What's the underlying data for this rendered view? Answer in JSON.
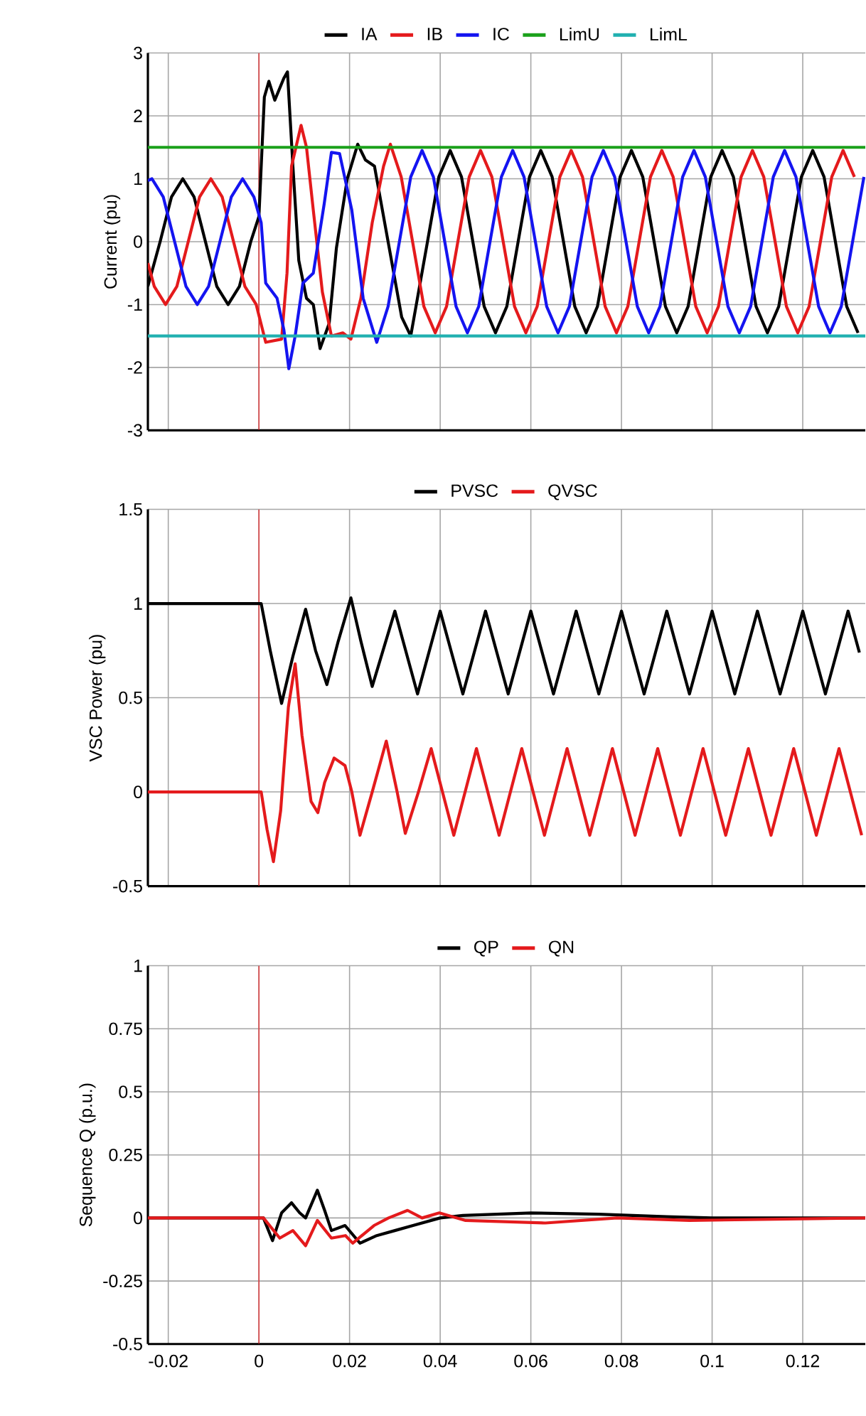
{
  "chart_data": [
    {
      "type": "line",
      "ylabel": "Current (pu)",
      "xlim": [
        -0.0245,
        0.1338
      ],
      "ylim": [
        -3,
        3
      ],
      "xticks": [
        -0.02,
        0,
        0.02,
        0.04,
        0.06,
        0.08,
        0.1,
        0.12
      ],
      "yticks": [
        -3,
        -2,
        -1,
        0,
        1,
        2,
        3
      ],
      "grid": true,
      "legend": "top",
      "tick_labels": "y",
      "ref_lines": [
        {
          "axis": "x",
          "value": 0,
          "color": "#e41a1c"
        }
      ],
      "series": [
        {
          "name": "IA",
          "color": "#000000",
          "x": [
            -0.0245,
            -0.0218,
            -0.0193,
            -0.0168,
            -0.0143,
            -0.0118,
            -0.0093,
            -0.0068,
            -0.0043,
            -0.0018,
            0.0,
            0.0012,
            0.0022,
            0.0035,
            0.0055,
            0.0063,
            0.0075,
            0.0088,
            0.0105,
            0.012,
            0.0135,
            0.0155,
            0.0171,
            0.0195,
            0.0218,
            0.0235,
            0.0255,
            0.0285,
            0.0315,
            0.0335,
            0.0372,
            0.0397,
            0.0422,
            0.0447,
            0.0472,
            0.0497,
            0.0522,
            0.0547,
            0.0572,
            0.0597,
            0.0622,
            0.0647,
            0.0672,
            0.0697,
            0.0722,
            0.0747,
            0.0772,
            0.0797,
            0.0822,
            0.0847,
            0.0872,
            0.0897,
            0.0922,
            0.0947,
            0.0972,
            0.0997,
            0.1022,
            0.1047,
            0.1072,
            0.1097,
            0.1122,
            0.1147,
            0.1172,
            0.1197,
            0.1222,
            0.1247,
            0.1272,
            0.1297,
            0.1322
          ],
          "values": [
            -0.71,
            0,
            0.71,
            1.0,
            0.71,
            0,
            -0.71,
            -1.0,
            -0.71,
            0,
            0.4,
            2.3,
            2.55,
            2.25,
            2.6,
            2.7,
            1.2,
            -0.3,
            -0.9,
            -1.0,
            -1.7,
            -1.3,
            -0.1,
            1.0,
            1.55,
            1.3,
            1.2,
            0.0,
            -1.2,
            -1.5,
            0,
            1.03,
            1.45,
            1.03,
            0,
            -1.03,
            -1.45,
            -1.03,
            0,
            1.03,
            1.45,
            1.03,
            0,
            -1.03,
            -1.45,
            -1.03,
            0,
            1.03,
            1.45,
            1.03,
            0,
            -1.03,
            -1.45,
            -1.03,
            0,
            1.03,
            1.45,
            1.03,
            0,
            -1.03,
            -1.45,
            -1.03,
            0,
            1.03,
            1.45,
            1.03,
            0,
            -1.03,
            -1.45
          ]
        },
        {
          "name": "IB",
          "color": "#e41a1c",
          "x": [
            -0.0245,
            -0.0231,
            -0.0206,
            -0.0181,
            -0.0156,
            -0.0131,
            -0.0106,
            -0.0081,
            -0.0056,
            -0.0031,
            -0.0006,
            0.0015,
            0.005,
            0.0062,
            0.0072,
            0.0093,
            0.0105,
            0.012,
            0.014,
            0.016,
            0.0185,
            0.0203,
            0.0225,
            0.025,
            0.0275,
            0.029,
            0.0314,
            0.0339,
            0.0364,
            0.0389,
            0.0414,
            0.0439,
            0.0464,
            0.0489,
            0.0514,
            0.0539,
            0.0564,
            0.0589,
            0.0614,
            0.0639,
            0.0664,
            0.0689,
            0.0714,
            0.0739,
            0.0764,
            0.0789,
            0.0814,
            0.0839,
            0.0864,
            0.0889,
            0.0914,
            0.0939,
            0.0964,
            0.0989,
            0.1014,
            0.1039,
            0.1064,
            0.1089,
            0.1114,
            0.1139,
            0.1164,
            0.1189,
            0.1214,
            0.1239,
            0.1264,
            0.1289,
            0.1314
          ],
          "values": [
            -0.34,
            -0.71,
            -1.0,
            -0.71,
            0,
            0.71,
            1.0,
            0.71,
            0,
            -0.71,
            -1.0,
            -1.6,
            -1.55,
            -0.5,
            1.2,
            1.85,
            1.5,
            0.5,
            -0.8,
            -1.5,
            -1.45,
            -1.55,
            -0.9,
            0.3,
            1.2,
            1.55,
            1.03,
            0,
            -1.03,
            -1.45,
            -1.03,
            0,
            1.03,
            1.45,
            1.03,
            0,
            -1.03,
            -1.45,
            -1.03,
            0,
            1.03,
            1.45,
            1.03,
            0,
            -1.03,
            -1.45,
            -1.03,
            0,
            1.03,
            1.45,
            1.03,
            0,
            -1.03,
            -1.45,
            -1.03,
            0,
            1.03,
            1.45,
            1.03,
            0,
            -1.03,
            -1.45,
            -1.03,
            0,
            1.03,
            1.45,
            1.03
          ]
        },
        {
          "name": "IC",
          "color": "#1414f0",
          "x": [
            -0.0245,
            -0.0236,
            -0.0211,
            -0.0186,
            -0.0161,
            -0.0136,
            -0.0111,
            -0.0086,
            -0.0061,
            -0.0036,
            -0.0011,
            0.0005,
            0.0015,
            0.004,
            0.0055,
            0.0066,
            0.008,
            0.0097,
            0.012,
            0.0144,
            0.016,
            0.0178,
            0.0205,
            0.023,
            0.026,
            0.0285,
            0.031,
            0.0335,
            0.036,
            0.0385,
            0.041,
            0.0435,
            0.046,
            0.0485,
            0.051,
            0.0535,
            0.056,
            0.0585,
            0.061,
            0.0635,
            0.066,
            0.0685,
            0.071,
            0.0735,
            0.076,
            0.0785,
            0.081,
            0.0835,
            0.086,
            0.0885,
            0.091,
            0.0935,
            0.096,
            0.0985,
            0.101,
            0.1035,
            0.106,
            0.1085,
            0.111,
            0.1135,
            0.116,
            0.1185,
            0.121,
            0.1235,
            0.126,
            0.1285,
            0.131,
            0.1335
          ],
          "values": [
            0.97,
            1.0,
            0.71,
            0,
            -0.71,
            -1.0,
            -0.71,
            0,
            0.71,
            1.0,
            0.71,
            0.3,
            -0.66,
            -0.9,
            -1.4,
            -2.02,
            -1.5,
            -0.66,
            -0.5,
            0.6,
            1.42,
            1.4,
            0.5,
            -0.9,
            -1.6,
            -1.03,
            0,
            1.03,
            1.45,
            1.03,
            0,
            -1.03,
            -1.45,
            -1.03,
            0,
            1.03,
            1.45,
            1.03,
            0,
            -1.03,
            -1.45,
            -1.03,
            0,
            1.03,
            1.45,
            1.03,
            0,
            -1.03,
            -1.45,
            -1.03,
            0,
            1.03,
            1.45,
            1.03,
            0,
            -1.03,
            -1.45,
            -1.03,
            0,
            1.03,
            1.45,
            1.03,
            0,
            -1.03,
            -1.45,
            -1.03,
            0,
            1.03
          ]
        },
        {
          "name": "LimU",
          "color": "#1ba11b",
          "x": [
            -0.0245,
            0.1338
          ],
          "values": [
            1.5,
            1.5
          ]
        },
        {
          "name": "LimL",
          "color": "#21b0b0",
          "x": [
            -0.0245,
            0.1338
          ],
          "values": [
            -1.5,
            -1.5
          ]
        }
      ]
    },
    {
      "type": "line",
      "ylabel": "VSC Power (pu)",
      "xlim": [
        -0.0245,
        0.1338
      ],
      "ylim": [
        -0.5,
        1.5
      ],
      "xticks": [
        -0.02,
        0,
        0.02,
        0.04,
        0.06,
        0.08,
        0.1,
        0.12
      ],
      "yticks": [
        -0.5,
        0,
        0.5,
        1,
        1.5
      ],
      "grid": true,
      "legend": "top",
      "tick_labels": "y",
      "ref_lines": [
        {
          "axis": "x",
          "value": 0,
          "color": "#e41a1c"
        }
      ],
      "series": [
        {
          "name": "PVSC",
          "color": "#000000",
          "x": [
            -0.0245,
            0.0005,
            0.0025,
            0.005,
            0.0075,
            0.0103,
            0.0125,
            0.015,
            0.0175,
            0.0203,
            0.0225,
            0.025,
            0.0275,
            0.03,
            0.0325,
            0.035,
            0.0375,
            0.04,
            0.0425,
            0.045,
            0.0475,
            0.05,
            0.0525,
            0.055,
            0.0575,
            0.06,
            0.0625,
            0.065,
            0.0675,
            0.07,
            0.0725,
            0.075,
            0.0775,
            0.08,
            0.0825,
            0.085,
            0.0875,
            0.09,
            0.0925,
            0.095,
            0.0975,
            0.1,
            0.1025,
            0.105,
            0.1075,
            0.11,
            0.1125,
            0.115,
            0.1175,
            0.12,
            0.1225,
            0.125,
            0.1275,
            0.13,
            0.1325
          ],
          "values": [
            1.0,
            1.0,
            0.75,
            0.47,
            0.72,
            0.97,
            0.75,
            0.57,
            0.8,
            1.03,
            0.8,
            0.56,
            0.76,
            0.96,
            0.74,
            0.52,
            0.74,
            0.96,
            0.74,
            0.52,
            0.74,
            0.96,
            0.74,
            0.52,
            0.74,
            0.96,
            0.74,
            0.52,
            0.74,
            0.96,
            0.74,
            0.52,
            0.74,
            0.96,
            0.74,
            0.52,
            0.74,
            0.96,
            0.74,
            0.52,
            0.74,
            0.96,
            0.74,
            0.52,
            0.74,
            0.96,
            0.74,
            0.52,
            0.74,
            0.96,
            0.74,
            0.52,
            0.74,
            0.96,
            0.74
          ]
        },
        {
          "name": "QVSC",
          "color": "#e41a1c",
          "x": [
            -0.0245,
            0.0005,
            0.0018,
            0.0032,
            0.0048,
            0.0065,
            0.008,
            0.0095,
            0.0115,
            0.013,
            0.0145,
            0.0166,
            0.019,
            0.0205,
            0.0223,
            0.025,
            0.0281,
            0.0305,
            0.0323,
            0.0352,
            0.038,
            0.0405,
            0.043,
            0.0455,
            0.048,
            0.0505,
            0.053,
            0.0555,
            0.058,
            0.0605,
            0.063,
            0.0655,
            0.068,
            0.0705,
            0.073,
            0.0755,
            0.078,
            0.0805,
            0.083,
            0.0855,
            0.088,
            0.0905,
            0.093,
            0.0955,
            0.098,
            0.1005,
            0.103,
            0.1055,
            0.108,
            0.1105,
            0.113,
            0.1155,
            0.118,
            0.1205,
            0.123,
            0.1255,
            0.128,
            0.1305,
            0.133
          ],
          "values": [
            0,
            0,
            -0.2,
            -0.37,
            -0.1,
            0.45,
            0.68,
            0.3,
            -0.05,
            -0.11,
            0.05,
            0.18,
            0.14,
            0.0,
            -0.23,
            0.0,
            0.27,
            0.0,
            -0.22,
            0,
            0.23,
            0,
            -0.23,
            0,
            0.23,
            0,
            -0.23,
            0,
            0.23,
            0,
            -0.23,
            0,
            0.23,
            0,
            -0.23,
            0,
            0.23,
            0,
            -0.23,
            0,
            0.23,
            0,
            -0.23,
            0,
            0.23,
            0,
            -0.23,
            0,
            0.23,
            0,
            -0.23,
            0,
            0.23,
            0,
            -0.23,
            0,
            0.23,
            0,
            -0.23
          ]
        }
      ]
    },
    {
      "type": "line",
      "ylabel": "Sequence Q (p.u.)",
      "xlim": [
        -0.0245,
        0.1338
      ],
      "ylim": [
        -0.5,
        1
      ],
      "xticks": [
        -0.02,
        0,
        0.02,
        0.04,
        0.06,
        0.08,
        0.1,
        0.12
      ],
      "yticks": [
        -0.5,
        -0.25,
        0,
        0.25,
        0.5,
        0.75,
        1
      ],
      "grid": true,
      "legend": "top",
      "ref_lines": [
        {
          "axis": "x",
          "value": 0,
          "color": "#e41a1c"
        }
      ],
      "series": [
        {
          "name": "QP",
          "color": "#000000",
          "x": [
            -0.0245,
            0.001,
            0.003,
            0.005,
            0.0072,
            0.009,
            0.0103,
            0.0129,
            0.0145,
            0.016,
            0.019,
            0.0223,
            0.026,
            0.03,
            0.034,
            0.04,
            0.045,
            0.06,
            0.075,
            0.09,
            0.1,
            0.1338
          ],
          "values": [
            0,
            0,
            -0.09,
            0.02,
            0.06,
            0.02,
            0.0,
            0.11,
            0.03,
            -0.05,
            -0.03,
            -0.1,
            -0.07,
            -0.05,
            -0.03,
            0.0,
            0.01,
            0.02,
            0.015,
            0.005,
            0.0,
            0.0
          ]
        },
        {
          "name": "QN",
          "color": "#e41a1c",
          "x": [
            -0.0245,
            0.001,
            0.0046,
            0.0075,
            0.0103,
            0.0129,
            0.016,
            0.0191,
            0.0207,
            0.0254,
            0.0286,
            0.0328,
            0.036,
            0.0398,
            0.0456,
            0.0632,
            0.079,
            0.095,
            0.1338
          ],
          "values": [
            0,
            0,
            -0.08,
            -0.05,
            -0.11,
            -0.01,
            -0.08,
            -0.07,
            -0.1,
            -0.03,
            0.0,
            0.03,
            0.0,
            0.02,
            -0.01,
            -0.02,
            0.0,
            -0.01,
            0.0
          ]
        }
      ]
    }
  ]
}
